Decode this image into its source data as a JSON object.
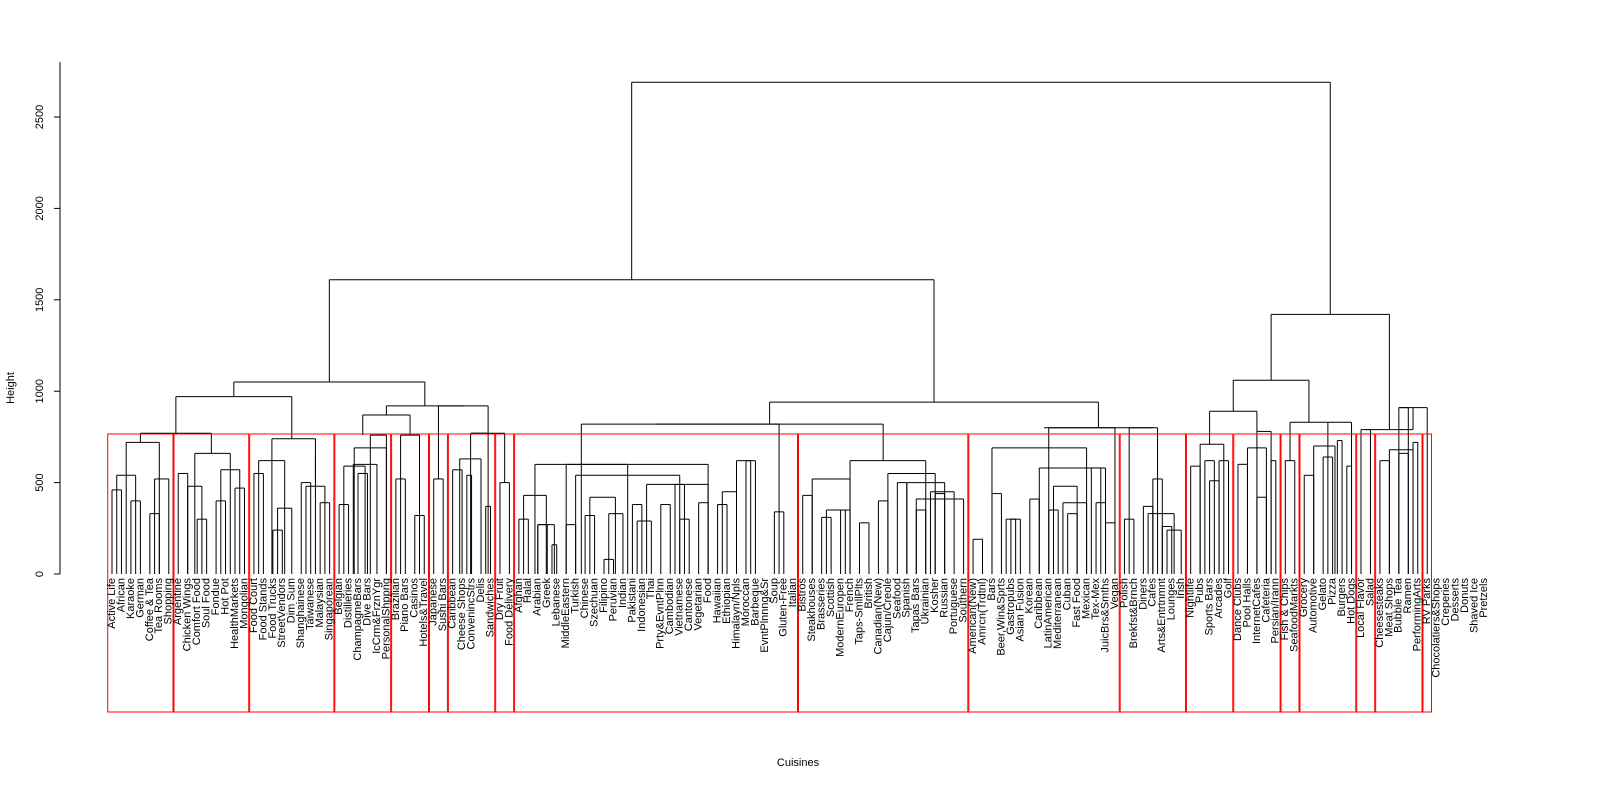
{
  "chart_data": {
    "type": "dendrogram",
    "title": "",
    "xlabel": "Cuisines",
    "ylabel": "Height",
    "ylim": [
      0,
      2800
    ],
    "yticks": [
      0,
      500,
      1000,
      1500,
      2000,
      2500
    ],
    "cluster_box_color": "#ff0000",
    "line_color": "#000000",
    "leaves": [
      "Active Life",
      "African",
      "Karaoke",
      "German",
      "Coffee & Tea",
      "Tea Rooms",
      "Shopping",
      "Argentine",
      "Chicken Wings",
      "Comfort Food",
      "Soul Food",
      "Fondue",
      "Hot Pot",
      "HealthMarkets",
      "Mongolian",
      "Food Court",
      "Food Stands",
      "Food Trucks",
      "StreetVendors",
      "Dim Sum",
      "Shanghainese",
      "Taiwanese",
      "Malaysian",
      "Singaporean",
      "Belgian",
      "Distilleries",
      "ChampagneBars",
      "Dive Bars",
      "IcCrm&FrznYgr",
      "PersonalShppng",
      "Brazilian",
      "Piano Bars",
      "Casinos",
      "Hotels&Travel",
      "Japanese",
      "Sushi Bars",
      "Caribbean",
      "Cheese Shops",
      "ConvenincStrs",
      "Delis",
      "Sandwiches",
      "Dry Fruit",
      "Food Delivery",
      "Afghan",
      "Halal",
      "Arabian",
      "Greek",
      "Lebanese",
      "MiddleEastern",
      "Turkish",
      "Chinese",
      "Szechuan",
      "Filipino",
      "Peruvian",
      "Indian",
      "Pakistani",
      "Indonesian",
      "Thai",
      "Prty&EvntPlnn",
      "Cambodian",
      "Vietnamese",
      "Cantonese",
      "Vegetarian",
      "Food",
      "Hawaiian",
      "Ethiopian",
      "Himalayn/Npls",
      "Moroccan",
      "Barbeque",
      "EvntPlnnng&Sr",
      "Soup",
      "Gluten-Free",
      "Italian",
      "Bistros",
      "Steakhouses",
      "Brasseries",
      "Scottish",
      "ModernEuropen",
      "French",
      "Taps-SmllPlts",
      "British",
      "Canadian(New)",
      "Cajun/Creole",
      "Seafood",
      "Spanish",
      "Tapas Bars",
      "Ukrainian",
      "Kosher",
      "Russian",
      "Portuguese",
      "Southern",
      "American(New)",
      "Amrcn(Trdtnl)",
      "Bars",
      "Beer,Win&Sprts",
      "Gastropubs",
      "Asian Fusion",
      "Korean",
      "Caribbean",
      "LatinAmerican",
      "Mediterranean",
      "Cuban",
      "Fast Food",
      "Mexican",
      "Tex-Mex",
      "JuicBrs&Smths",
      "Vegan",
      "Polish",
      "Brekfst&Brnch",
      "Diners",
      "Cafes",
      "Arts&Entrtnmnt",
      "Lounges",
      "Irish",
      "Nightlife",
      "Pubs",
      "Sports Bars",
      "Arcades",
      "Golf",
      "Dance Clubs",
      "Pool Halls",
      "InternetCafes",
      "Cafeteria",
      "Persian/Irann",
      "Fish & Chips",
      "SeafoodMarkts",
      "Grocery",
      "Automotive",
      "Gelato",
      "Pizza",
      "Burgers",
      "Hot Dogs",
      "Local Flavor",
      "Salad",
      "Cheesesteaks",
      "Meat Shops",
      "Bubble Tea",
      "Ramen",
      "PerformingArts",
      "RV Parks",
      "Chocolatiers&Shops",
      "Creperies",
      "Desserts",
      "Donuts",
      "Shaved Ice",
      "Pretzels"
    ],
    "groups": [
      {
        "size": 7,
        "h": 720,
        "pairs": [
          [
            0,
            1,
            460
          ],
          [
            2,
            3,
            400
          ],
          [
            0.5,
            2.5,
            540
          ],
          [
            4,
            5,
            330
          ],
          [
            4.5,
            6,
            520
          ],
          [
            1.5,
            5,
            720
          ]
        ],
        "tops": [
          7,
          3,
          7
        ]
      },
      {
        "size": 8,
        "h": 660,
        "pairs": [
          [
            0,
            1,
            550
          ],
          [
            2,
            3,
            300
          ],
          [
            1,
            2.5,
            480
          ],
          [
            4,
            5,
            400
          ],
          [
            6,
            7,
            470
          ],
          [
            4.5,
            6.5,
            570
          ],
          [
            1.75,
            5.5,
            660
          ]
        ]
      },
      {
        "size": 9,
        "h": 740,
        "pairs": [
          [
            0,
            1,
            550
          ],
          [
            2,
            3,
            240
          ],
          [
            2.5,
            4,
            360
          ],
          [
            0.5,
            3.25,
            620
          ],
          [
            5,
            6,
            500
          ],
          [
            7,
            8,
            390
          ],
          [
            5.5,
            7.5,
            480
          ],
          [
            6.5,
            6.5,
            640
          ],
          [
            1.9,
            6.5,
            740
          ]
        ]
      },
      {
        "size": 6,
        "h": 760,
        "pairs": [
          [
            0,
            1,
            380
          ],
          [
            2,
            3,
            550
          ],
          [
            1.5,
            4,
            600
          ],
          [
            0.5,
            2.75,
            590
          ],
          [
            1.6,
            5,
            690
          ],
          [
            3.3,
            5,
            760
          ]
        ]
      },
      {
        "size": 4,
        "h": 760,
        "pairs": [
          [
            0,
            1,
            520
          ],
          [
            2,
            3,
            320
          ],
          [
            2.5,
            2.5,
            710
          ],
          [
            0.5,
            2.5,
            760
          ]
        ]
      },
      {
        "size": 2,
        "h": 520,
        "pairs": [
          [
            0,
            1,
            520
          ]
        ]
      },
      {
        "size": 5,
        "h": 770,
        "pairs": [
          [
            0,
            1,
            570
          ],
          [
            1.5,
            2,
            540
          ],
          [
            0.75,
            3,
            630
          ],
          [
            3.5,
            4,
            370
          ],
          [
            1.9,
            3.75,
            770
          ]
        ]
      },
      {
        "size": 2,
        "h": 500,
        "pairs": [
          [
            0,
            1,
            500
          ]
        ]
      },
      {
        "size": 30,
        "h": 820,
        "pairs": [
          [
            0,
            1,
            300
          ],
          [
            2,
            3,
            270
          ],
          [
            3.5,
            4,
            160
          ],
          [
            2,
            3.75,
            270
          ],
          [
            0.5,
            2.9,
            430
          ],
          [
            5,
            6,
            270
          ],
          [
            7,
            8,
            320
          ],
          [
            9,
            10,
            80
          ],
          [
            9.5,
            11,
            330
          ],
          [
            7.5,
            10.2,
            420
          ],
          [
            12,
            13,
            380
          ],
          [
            12.5,
            14,
            290
          ],
          [
            15,
            16,
            380
          ],
          [
            17,
            18,
            300
          ],
          [
            16.5,
            17.5,
            490
          ],
          [
            19,
            20,
            390
          ],
          [
            21,
            22,
            380
          ],
          [
            21.5,
            23,
            450
          ],
          [
            24,
            25,
            620
          ],
          [
            23,
            24.5,
            620
          ],
          [
            13.5,
            20,
            490
          ],
          [
            6,
            17,
            540
          ],
          [
            1.7,
            11.5,
            600
          ],
          [
            5,
            20,
            600
          ],
          [
            27,
            28,
            340
          ],
          [
            6.6,
            27.5,
            820
          ]
        ]
      },
      {
        "size": 18,
        "h": 620,
        "pairs": [
          [
            0,
            1,
            430
          ],
          [
            2,
            3,
            310
          ],
          [
            4,
            5,
            350
          ],
          [
            2.5,
            4.5,
            350
          ],
          [
            6,
            7,
            280
          ],
          [
            1,
            5,
            520
          ],
          [
            8,
            9,
            400
          ],
          [
            10,
            11,
            500
          ],
          [
            12,
            13,
            350
          ],
          [
            14,
            15,
            440
          ],
          [
            13.5,
            16,
            450
          ],
          [
            11,
            15,
            500
          ],
          [
            12,
            17,
            410
          ],
          [
            9,
            14,
            550
          ],
          [
            5,
            13,
            620
          ]
        ]
      },
      {
        "size": 16,
        "h": 800,
        "pairs": [
          [
            0,
            1,
            190
          ],
          [
            2,
            3,
            440
          ],
          [
            4,
            5,
            300
          ],
          [
            3.5,
            4.5,
            300
          ],
          [
            6,
            7,
            410
          ],
          [
            8,
            9,
            350
          ],
          [
            10,
            11,
            330
          ],
          [
            9.5,
            12,
            390
          ],
          [
            8.5,
            11,
            480
          ],
          [
            13,
            14,
            390
          ],
          [
            12.5,
            13.5,
            580
          ],
          [
            15,
            14,
            280
          ],
          [
            7,
            14,
            580
          ],
          [
            2,
            12,
            690
          ],
          [
            8,
            15,
            800
          ]
        ]
      },
      {
        "size": 7,
        "h": 800,
        "pairs": [
          [
            0,
            1,
            300
          ],
          [
            2,
            3,
            370
          ],
          [
            4,
            5,
            260
          ],
          [
            4.5,
            6,
            240
          ],
          [
            2.5,
            5.25,
            330
          ],
          [
            3,
            4,
            520
          ],
          [
            0.5,
            3.5,
            800
          ]
        ]
      },
      {
        "size": 5,
        "h": 710,
        "pairs": [
          [
            0,
            1,
            590
          ],
          [
            2,
            3,
            510
          ],
          [
            1.5,
            2.5,
            620
          ],
          [
            3,
            4,
            620
          ],
          [
            1,
            3.5,
            710
          ]
        ]
      },
      {
        "size": 5,
        "h": 780,
        "pairs": [
          [
            0,
            1,
            600
          ],
          [
            2,
            3,
            420
          ],
          [
            3.5,
            4,
            620
          ],
          [
            1,
            3,
            690
          ],
          [
            2,
            3.5,
            780
          ]
        ]
      },
      {
        "size": 2,
        "h": 620,
        "pairs": [
          [
            0,
            1,
            620
          ]
        ]
      },
      {
        "size": 6,
        "h": 830,
        "pairs": [
          [
            0,
            1,
            540
          ],
          [
            2,
            3,
            640
          ],
          [
            3.5,
            4,
            730
          ],
          [
            1,
            3.25,
            700
          ],
          [
            4.5,
            5,
            590
          ],
          [
            2.5,
            5,
            830
          ]
        ]
      },
      {
        "size": 2,
        "h": 790,
        "pairs": [
          [
            0,
            1,
            790
          ]
        ]
      },
      {
        "size": 5,
        "h": 910,
        "pairs": [
          [
            0,
            1,
            620
          ],
          [
            2,
            3,
            660
          ],
          [
            3.5,
            4,
            720
          ],
          [
            1,
            3.5,
            680
          ],
          [
            2,
            3,
            910
          ]
        ]
      },
      {
        "size": 1,
        "h": 0,
        "pairs": []
      }
    ]
  }
}
